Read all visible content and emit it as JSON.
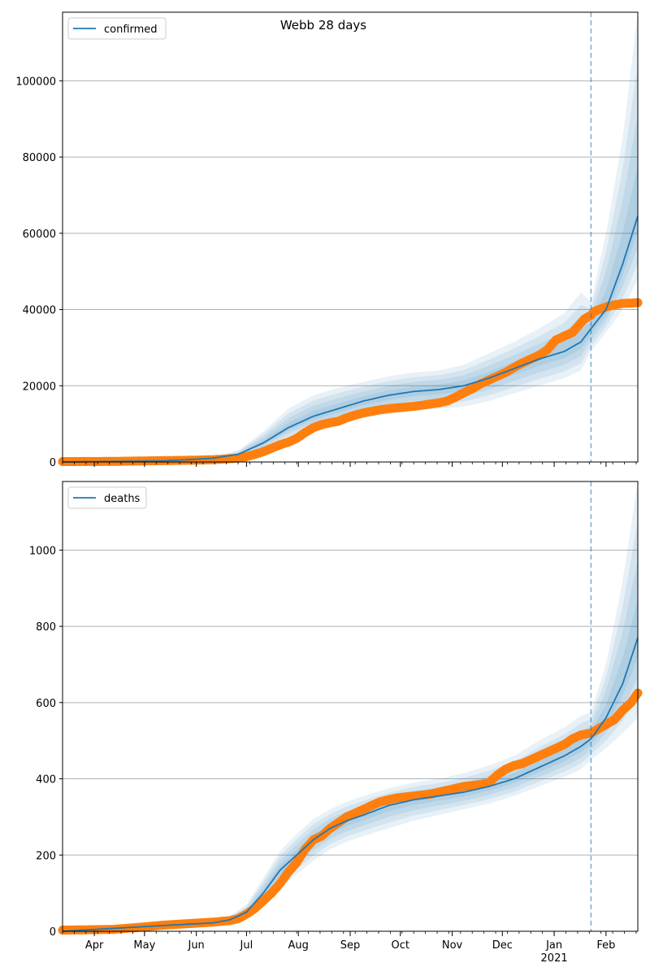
{
  "title": "Webb 28 days",
  "colors": {
    "model": "#1f77b4",
    "observed": "#ff7f0e",
    "band": "#1f77b4",
    "grid": "#b0b0b0",
    "forecast_line": "#1f77b4"
  },
  "x_axis": {
    "month_labels": [
      "Apr",
      "May",
      "Jun",
      "Jul",
      "Aug",
      "Sep",
      "Oct",
      "Nov",
      "Dec",
      "Jan",
      "Feb"
    ],
    "year_label": "2021",
    "range_days": [
      0,
      344
    ],
    "forecast_start_day": 316
  },
  "chart_data": [
    {
      "type": "line",
      "name": "confirmed",
      "legend": "confirmed",
      "legend_position": "top-left",
      "grid": "horizontal",
      "ylim": [
        0,
        118000
      ],
      "yticks": [
        "0",
        "20000",
        "40000",
        "60000",
        "80000",
        "100000"
      ],
      "model_x": [
        0,
        60,
        75,
        90,
        105,
        120,
        135,
        150,
        165,
        180,
        195,
        210,
        225,
        240,
        255,
        270,
        285,
        300,
        310,
        316,
        325,
        335,
        344
      ],
      "model_y": [
        0,
        300,
        600,
        1000,
        2000,
        5000,
        9000,
        12000,
        14000,
        16000,
        17500,
        18500,
        19000,
        20000,
        22000,
        24500,
        27000,
        29000,
        31500,
        35000,
        40000,
        52000,
        64500
      ],
      "band_outer_upper": [
        0,
        400,
        800,
        1400,
        3000,
        8000,
        14000,
        17500,
        19500,
        21000,
        22500,
        23500,
        24000,
        25500,
        28500,
        31500,
        35000,
        39000,
        44500,
        42000,
        60000,
        85000,
        118000
      ],
      "band_outer_lower": [
        0,
        200,
        400,
        700,
        1300,
        3000,
        6000,
        8500,
        10000,
        11500,
        12500,
        13500,
        14000,
        14500,
        16000,
        18000,
        20000,
        22000,
        24000,
        29000,
        34000,
        40000,
        48000
      ],
      "obs_x": [
        0,
        30,
        45,
        60,
        75,
        90,
        105,
        110,
        115,
        120,
        125,
        130,
        135,
        140,
        145,
        150,
        155,
        160,
        165,
        170,
        175,
        180,
        185,
        190,
        195,
        200,
        205,
        210,
        215,
        220,
        225,
        230,
        235,
        240,
        245,
        250,
        255,
        260,
        265,
        270,
        275,
        280,
        285,
        290,
        295,
        300,
        305,
        310,
        312,
        316,
        318,
        322,
        326,
        330,
        335,
        340,
        344
      ],
      "obs_y": [
        100,
        150,
        250,
        350,
        450,
        600,
        1000,
        1400,
        2000,
        2700,
        3600,
        4500,
        5200,
        6200,
        7700,
        9000,
        9800,
        10300,
        10700,
        11600,
        12300,
        12900,
        13300,
        13700,
        14000,
        14200,
        14400,
        14600,
        14900,
        15200,
        15500,
        16000,
        17000,
        18200,
        19200,
        20500,
        21500,
        22500,
        23500,
        24800,
        26000,
        27000,
        28000,
        29500,
        32000,
        33000,
        34000,
        36500,
        37500,
        38500,
        39500,
        40200,
        40800,
        41200,
        41600,
        41700,
        41800
      ]
    },
    {
      "type": "line",
      "name": "deaths",
      "legend": "deaths",
      "legend_position": "top-left",
      "grid": "horizontal",
      "ylim": [
        0,
        1180
      ],
      "yticks": [
        "0",
        "200",
        "400",
        "600",
        "800",
        "1000"
      ],
      "model_x": [
        0,
        60,
        90,
        100,
        110,
        120,
        130,
        140,
        150,
        160,
        170,
        180,
        195,
        210,
        225,
        240,
        255,
        270,
        285,
        300,
        310,
        316,
        325,
        335,
        344
      ],
      "model_y": [
        0,
        15,
        22,
        30,
        50,
        100,
        160,
        200,
        240,
        270,
        290,
        305,
        330,
        345,
        355,
        365,
        380,
        400,
        430,
        460,
        485,
        505,
        560,
        650,
        770
      ],
      "band_outer_upper": [
        0,
        20,
        30,
        40,
        70,
        140,
        210,
        255,
        295,
        320,
        340,
        355,
        375,
        390,
        400,
        415,
        435,
        460,
        500,
        535,
        565,
        575,
        700,
        920,
        1180
      ],
      "band_outer_lower": [
        0,
        10,
        15,
        22,
        35,
        70,
        115,
        150,
        185,
        215,
        235,
        250,
        270,
        290,
        305,
        320,
        335,
        355,
        380,
        405,
        425,
        450,
        480,
        520,
        560
      ],
      "obs_x": [
        0,
        30,
        45,
        60,
        75,
        90,
        100,
        105,
        110,
        115,
        120,
        125,
        130,
        135,
        140,
        145,
        150,
        155,
        160,
        165,
        170,
        175,
        180,
        190,
        200,
        210,
        220,
        230,
        240,
        250,
        255,
        260,
        265,
        270,
        275,
        280,
        290,
        300,
        305,
        310,
        316,
        322,
        330,
        335,
        340,
        344
      ],
      "obs_y": [
        3,
        5,
        10,
        16,
        20,
        24,
        28,
        33,
        45,
        60,
        80,
        100,
        125,
        155,
        180,
        215,
        240,
        250,
        270,
        285,
        300,
        310,
        320,
        340,
        350,
        355,
        360,
        370,
        380,
        385,
        390,
        410,
        425,
        435,
        440,
        450,
        470,
        490,
        505,
        515,
        520,
        535,
        555,
        580,
        600,
        625
      ]
    }
  ]
}
